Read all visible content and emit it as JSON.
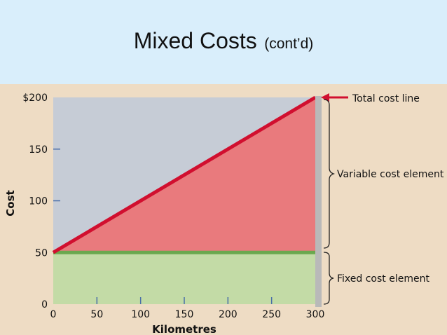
{
  "slide": {
    "title_main": "Mixed Costs",
    "title_sub": "(cont’d)"
  },
  "chart_data": {
    "type": "area",
    "ylabel": "Cost",
    "xlabel": "Kilometres",
    "xlim": [
      0,
      300
    ],
    "ylim": [
      0,
      200
    ],
    "x_ticks": [
      0,
      50,
      100,
      150,
      200,
      250,
      300
    ],
    "x_tick_labels": [
      "0",
      "50",
      "100",
      "150",
      "200",
      "250",
      "300"
    ],
    "y_ticks": [
      0,
      50,
      100,
      150,
      200
    ],
    "y_tick_labels": [
      "0",
      "50",
      "100",
      "150",
      "$200"
    ],
    "fixed_cost": 50,
    "total_cost_line": {
      "x": [
        0,
        300
      ],
      "y": [
        50,
        200
      ]
    },
    "annotations": {
      "total": "Total cost line",
      "variable": "Variable cost element",
      "fixed": "Fixed cost element"
    },
    "colors": {
      "background": "#c6ccd6",
      "fixed": "#c3dba6",
      "fixed_line": "#6aa84f",
      "variable": "#e97a7d",
      "total_line": "#d10f2f",
      "right_edge": "#b9b9b9",
      "arrow": "#d10f2f"
    }
  }
}
